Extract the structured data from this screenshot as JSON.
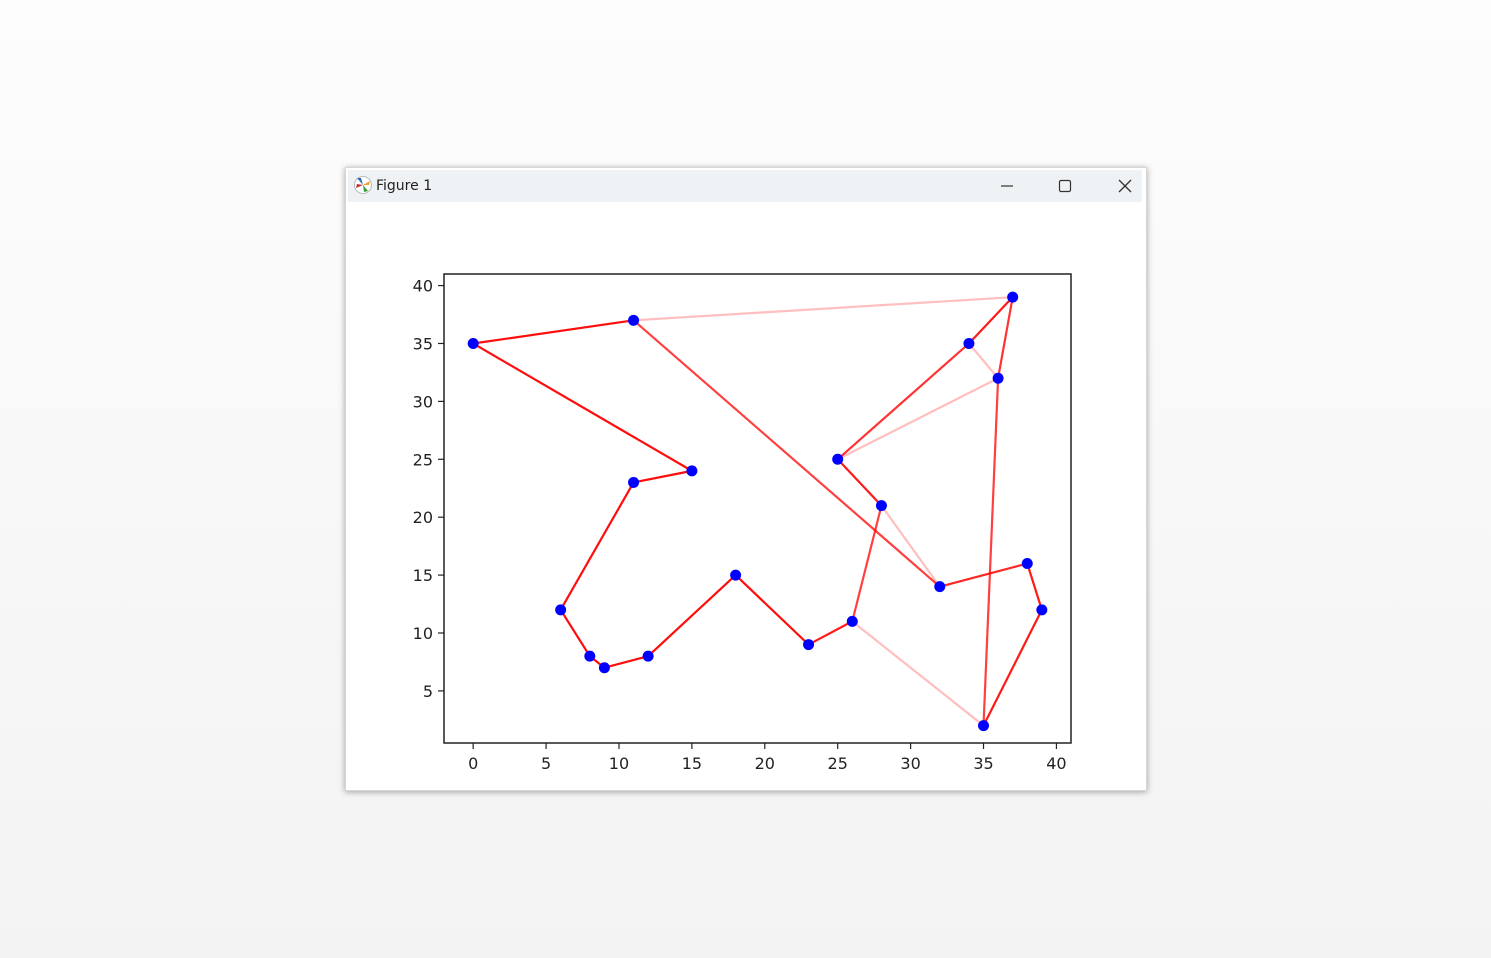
{
  "window": {
    "title": "Figure 1"
  },
  "icons": {
    "app": "matplotlib-figure-icon",
    "minimize": "minimize-icon",
    "maximize": "maximize-icon",
    "close": "close-icon"
  },
  "colors": {
    "line": "#ff0000",
    "marker": "#0000ff"
  },
  "chart_data": {
    "type": "line",
    "title": "",
    "xlabel": "",
    "ylabel": "",
    "xlim": [
      -2,
      41
    ],
    "ylim": [
      0.5,
      41
    ],
    "xticks": [
      0,
      5,
      10,
      15,
      20,
      25,
      30,
      35,
      40
    ],
    "yticks": [
      5,
      10,
      15,
      20,
      25,
      30,
      35,
      40
    ],
    "grid": false,
    "points": [
      [
        0,
        35
      ],
      [
        11,
        37
      ],
      [
        37,
        39
      ],
      [
        34,
        35
      ],
      [
        36,
        32
      ],
      [
        25,
        25
      ],
      [
        28,
        21
      ],
      [
        32,
        14
      ],
      [
        38,
        16
      ],
      [
        39,
        12
      ],
      [
        35,
        2
      ],
      [
        26,
        11
      ],
      [
        23,
        9
      ],
      [
        18,
        15
      ],
      [
        12,
        8
      ],
      [
        9,
        7
      ],
      [
        8,
        8
      ],
      [
        6,
        12
      ],
      [
        11,
        23
      ],
      [
        15,
        24
      ]
    ],
    "edges": [
      {
        "from": [
          0,
          35
        ],
        "to": [
          11,
          37
        ],
        "opacity": 0.95
      },
      {
        "from": [
          0,
          35
        ],
        "to": [
          15,
          24
        ],
        "opacity": 0.95
      },
      {
        "from": [
          15,
          24
        ],
        "to": [
          11,
          23
        ],
        "opacity": 0.95
      },
      {
        "from": [
          11,
          23
        ],
        "to": [
          6,
          12
        ],
        "opacity": 0.95
      },
      {
        "from": [
          6,
          12
        ],
        "to": [
          8,
          8
        ],
        "opacity": 0.95
      },
      {
        "from": [
          8,
          8
        ],
        "to": [
          9,
          7
        ],
        "opacity": 0.95
      },
      {
        "from": [
          9,
          7
        ],
        "to": [
          12,
          8
        ],
        "opacity": 0.95
      },
      {
        "from": [
          12,
          8
        ],
        "to": [
          18,
          15
        ],
        "opacity": 0.95
      },
      {
        "from": [
          18,
          15
        ],
        "to": [
          23,
          9
        ],
        "opacity": 0.95
      },
      {
        "from": [
          23,
          9
        ],
        "to": [
          26,
          11
        ],
        "opacity": 0.9
      },
      {
        "from": [
          26,
          11
        ],
        "to": [
          28,
          21
        ],
        "opacity": 0.75
      },
      {
        "from": [
          28,
          21
        ],
        "to": [
          25,
          25
        ],
        "opacity": 0.9
      },
      {
        "from": [
          25,
          25
        ],
        "to": [
          34,
          35
        ],
        "opacity": 0.8
      },
      {
        "from": [
          34,
          35
        ],
        "to": [
          37,
          39
        ],
        "opacity": 0.9
      },
      {
        "from": [
          37,
          39
        ],
        "to": [
          36,
          32
        ],
        "opacity": 0.8
      },
      {
        "from": [
          36,
          32
        ],
        "to": [
          35,
          2
        ],
        "opacity": 0.75
      },
      {
        "from": [
          35,
          2
        ],
        "to": [
          39,
          12
        ],
        "opacity": 0.9
      },
      {
        "from": [
          39,
          12
        ],
        "to": [
          38,
          16
        ],
        "opacity": 0.9
      },
      {
        "from": [
          38,
          16
        ],
        "to": [
          32,
          14
        ],
        "opacity": 0.85
      },
      {
        "from": [
          32,
          14
        ],
        "to": [
          11,
          37
        ],
        "opacity": 0.75
      },
      {
        "from": [
          11,
          37
        ],
        "to": [
          37,
          39
        ],
        "opacity": 0.25
      },
      {
        "from": [
          34,
          35
        ],
        "to": [
          36,
          32
        ],
        "opacity": 0.25
      },
      {
        "from": [
          36,
          32
        ],
        "to": [
          25,
          25
        ],
        "opacity": 0.25
      },
      {
        "from": [
          28,
          21
        ],
        "to": [
          32,
          14
        ],
        "opacity": 0.25
      },
      {
        "from": [
          26,
          11
        ],
        "to": [
          35,
          2
        ],
        "opacity": 0.25
      }
    ]
  }
}
